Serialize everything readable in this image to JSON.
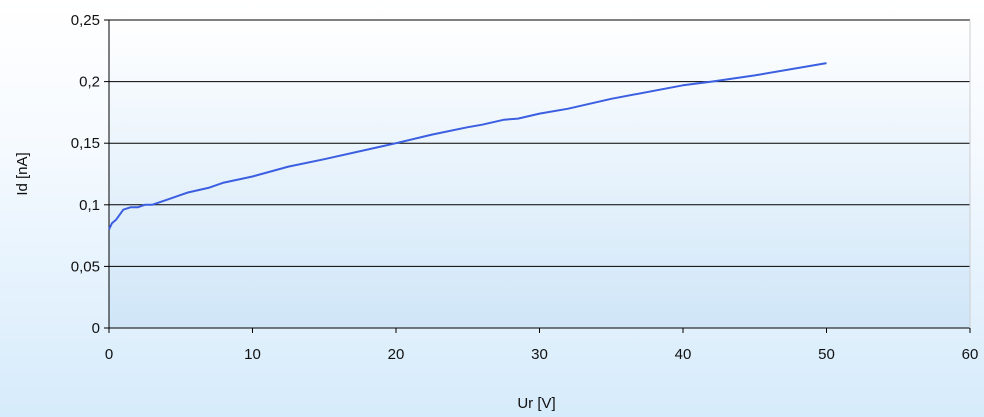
{
  "chart_data": {
    "type": "line",
    "title": "",
    "xlabel": "Ur [V]",
    "ylabel": "Id [nA]",
    "xlim": [
      0,
      60
    ],
    "ylim": [
      0,
      0.25
    ],
    "xticks": [
      0,
      10,
      20,
      30,
      40,
      50,
      60
    ],
    "xtick_labels": [
      "0",
      "10",
      "20",
      "30",
      "40",
      "50",
      "60"
    ],
    "yticks": [
      0,
      0.05,
      0.1,
      0.15,
      0.2,
      0.25
    ],
    "ytick_labels": [
      "0",
      "0,05",
      "0,1",
      "0,15",
      "0,2",
      "0,25"
    ],
    "grid": "horizontal",
    "legend": "none",
    "colors": {
      "series": "#3b5fe0",
      "gridline": "#000000",
      "plot_bg_top": "#ffffff",
      "plot_bg_bottom": "#cfe6f8"
    },
    "series": [
      {
        "x": [
          0,
          0.2,
          0.5,
          1,
          1.5,
          2,
          2.5,
          3,
          4,
          5,
          5.5,
          7,
          8,
          10,
          12.5,
          15,
          20,
          22.5,
          25,
          26,
          27.5,
          28.5,
          30,
          32,
          35,
          40,
          42,
          45,
          50
        ],
        "values": [
          0.08,
          0.085,
          0.088,
          0.096,
          0.098,
          0.098,
          0.1,
          0.1,
          0.104,
          0.108,
          0.11,
          0.114,
          0.118,
          0.123,
          0.131,
          0.137,
          0.15,
          0.157,
          0.163,
          0.165,
          0.169,
          0.17,
          0.174,
          0.178,
          0.186,
          0.197,
          0.2,
          0.205,
          0.215
        ]
      }
    ]
  }
}
